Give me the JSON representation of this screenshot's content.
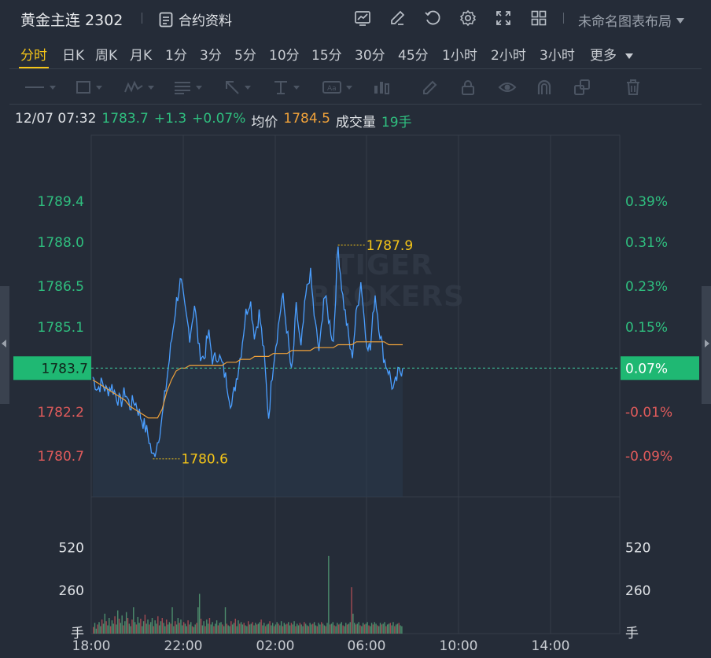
{
  "header": {
    "title": "黄金主连 2302",
    "contract_label": "合约资料",
    "layout_label": "未命名图表布局"
  },
  "toolbar_icons": [
    "chart-indicator-icon",
    "draw-pen-icon",
    "replay-icon",
    "settings-gear-icon",
    "fullscreen-icon",
    "grid-layout-icon"
  ],
  "tabs": [
    "分时",
    "日K",
    "周K",
    "月K",
    "1分",
    "3分",
    "5分",
    "10分",
    "15分",
    "30分",
    "45分",
    "1小时",
    "2小时",
    "3小时",
    "更多"
  ],
  "active_tab": "分时",
  "draw_tools": [
    "line-tool-icon",
    "rectangle-tool-icon",
    "pattern-tool-icon",
    "fib-tool-icon",
    "arrow-tool-icon",
    "measure-tool-icon",
    "text-tool-icon",
    "position-tool-icon",
    "brush-icon",
    "lock-icon",
    "eye-icon",
    "magnet-icon",
    "clone-icon",
    "trash-icon"
  ],
  "info": {
    "datetime": "12/07 07:32",
    "price": "1783.7",
    "change": "+1.3",
    "change_pct": "+0.07%",
    "avg_label": "均价",
    "avg_value": "1784.5",
    "volume_label": "成交量",
    "volume_value": "19手"
  },
  "watermark": [
    "TIGER",
    "BROKERS"
  ],
  "chart_data": {
    "type": "line",
    "series": [
      {
        "name": "",
        "values": [
          1783.4,
          1783.0,
          1783.2,
          1782.9,
          1783.1,
          1782.8,
          1782.5,
          1782.9,
          1782.4,
          1782.6,
          1782.2,
          1781.8,
          1781.4,
          1780.6,
          1781.2,
          1782.0,
          1783.3,
          1784.6,
          1785.9,
          1786.7,
          1785.6,
          1784.8,
          1785.9,
          1784.3,
          1784.0,
          1784.9,
          1783.9,
          1784.2,
          1783.8,
          1783.2,
          1782.4,
          1783.3,
          1784.2,
          1785.5,
          1786.1,
          1784.8,
          1785.6,
          1784.2,
          1782.0,
          1783.9,
          1785.0,
          1786.2,
          1785.0,
          1783.4,
          1785.8,
          1784.3,
          1786.1,
          1787.0,
          1785.3,
          1784.2,
          1786.3,
          1785.4,
          1784.6,
          1787.9,
          1786.2,
          1785.1,
          1784.0,
          1785.6,
          1786.7,
          1784.8,
          1784.3,
          1786.3,
          1785.0,
          1784.0,
          1783.6,
          1782.9,
          1783.5,
          1783.7
        ],
        "color": "#4a9eff"
      },
      {
        "name": "",
        "values": [
          1783.3,
          1783.2,
          1783.1,
          1783.0,
          1782.9,
          1782.8,
          1782.7,
          1782.6,
          1782.4,
          1782.3,
          1782.2,
          1782.1,
          1782.0,
          1782.0,
          1782.0,
          1782.3,
          1782.9,
          1783.3,
          1783.6,
          1783.7,
          1783.7,
          1783.8,
          1783.8,
          1783.8,
          1783.8,
          1783.8,
          1783.8,
          1783.8,
          1783.8,
          1783.9,
          1783.9,
          1783.9,
          1784.0,
          1784.0,
          1784.0,
          1784.1,
          1784.1,
          1784.1,
          1784.1,
          1784.2,
          1784.2,
          1784.2,
          1784.2,
          1784.3,
          1784.3,
          1784.3,
          1784.3,
          1784.3,
          1784.4,
          1784.4,
          1784.4,
          1784.4,
          1784.4,
          1784.5,
          1784.5,
          1784.5,
          1784.5,
          1784.6,
          1784.6,
          1784.6,
          1784.6,
          1784.6,
          1784.6,
          1784.6,
          1784.5,
          1784.5,
          1784.5,
          1784.5
        ],
        "color": "#f0a23a"
      }
    ],
    "y_ticks_left": [
      "1789.4",
      "1788.0",
      "1786.5",
      "1785.1",
      "1783.7",
      "1782.2",
      "1780.7"
    ],
    "y_ticks_right": [
      "0.39%",
      "0.31%",
      "0.23%",
      "0.15%",
      "0.07%",
      "-0.01%",
      "-0.09%"
    ],
    "current_price_label": "1783.7",
    "current_pct_label": "0.07%",
    "high_label": "1787.9",
    "low_label": "1780.6",
    "volume_ticks": [
      "520",
      "260"
    ],
    "volume_unit": "手",
    "x_ticks": [
      "18:00",
      "22:00",
      "02:00",
      "06:00",
      "10:00",
      "14:00"
    ],
    "volume": [
      40,
      65,
      30,
      55,
      70,
      45,
      85,
      60,
      120,
      75,
      50,
      95,
      45,
      80,
      60,
      105,
      55,
      140,
      90,
      65,
      110,
      50,
      75,
      130,
      95,
      60,
      45,
      85,
      160,
      70,
      55,
      100,
      65,
      90,
      45,
      75,
      115,
      60,
      85,
      55,
      70,
      95,
      45,
      80,
      60,
      105,
      50,
      75,
      95,
      65,
      45,
      85,
      55,
      70,
      60,
      160,
      45,
      75,
      55,
      95,
      65,
      85,
      50,
      70,
      60,
      45,
      80,
      55,
      70,
      45,
      40,
      55,
      65,
      160,
      240,
      90,
      50,
      75,
      45,
      85,
      60,
      95,
      55,
      70,
      45,
      60,
      80,
      50,
      65,
      70,
      55,
      45,
      160,
      60,
      50,
      45,
      75,
      55,
      65,
      90,
      45,
      80,
      60,
      70,
      55,
      65,
      50,
      45,
      75,
      55,
      60,
      70,
      50,
      65,
      55,
      60,
      70,
      85,
      50,
      65,
      45,
      55,
      60,
      75,
      50,
      65,
      45,
      55,
      70,
      60,
      50,
      75,
      45,
      65,
      55,
      60,
      70,
      50,
      65,
      55,
      75,
      45,
      60,
      50,
      65,
      55,
      45,
      70,
      60,
      50,
      45,
      65,
      55,
      60,
      70,
      50,
      45,
      65,
      55,
      70,
      60,
      50,
      45,
      65,
      470,
      55,
      60,
      70,
      50,
      45,
      65,
      55,
      60,
      70,
      50,
      45,
      65,
      55,
      60,
      70,
      280,
      120,
      65,
      55,
      60,
      70,
      50,
      45,
      65,
      55,
      60,
      70,
      50,
      45,
      65,
      55,
      70,
      60,
      50,
      45,
      65,
      55,
      60,
      70,
      45,
      55,
      60,
      65,
      50,
      70,
      45,
      55,
      60,
      65,
      50,
      45
    ]
  }
}
